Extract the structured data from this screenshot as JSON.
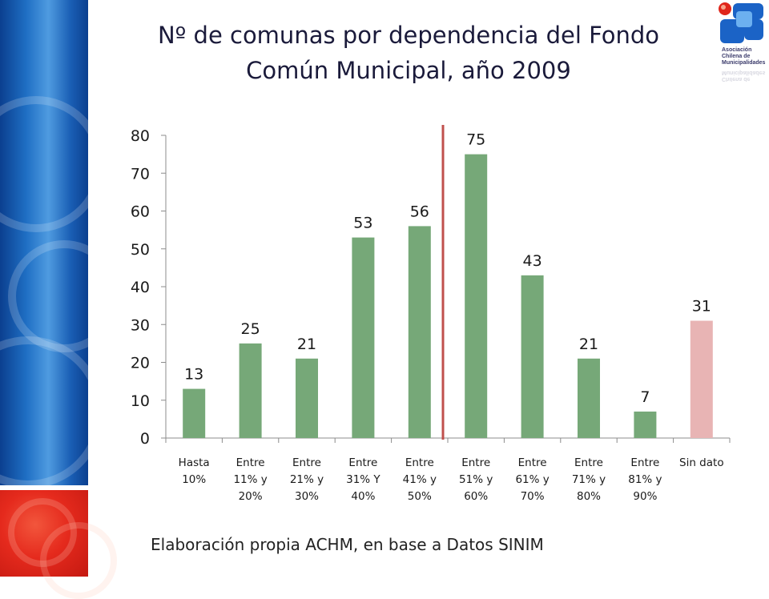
{
  "slide": {
    "title_line1": "Nº de comunas por dependencia del Fondo",
    "title_line2": "Común Municipal, año 2009",
    "source_note": "Elaboración propia ACHM, en base a Datos SINIM",
    "logo_text": [
      "Asociación",
      "Chilena de",
      "Municipalidades"
    ]
  },
  "colors": {
    "bar_default": "#76a878",
    "bar_highlight": "#e8b4b4",
    "divider_line": "#c0504d",
    "axis": "#8c8c8c",
    "text": "#1a1a1a"
  },
  "icons": {
    "logo": "achm-logo-icon"
  },
  "chart_data": {
    "type": "bar",
    "title": "Nº de comunas por dependencia del Fondo Común Municipal, año 2009",
    "categories": [
      [
        "Hasta",
        "10%"
      ],
      [
        "Entre",
        "11% y",
        "20%"
      ],
      [
        "Entre",
        "21% y",
        "30%"
      ],
      [
        "Entre",
        "31% Y",
        "40%"
      ],
      [
        "Entre",
        "41% y",
        "50%"
      ],
      [
        "Entre",
        "51% y",
        "60%"
      ],
      [
        "Entre",
        "61% y",
        "70%"
      ],
      [
        "Entre",
        "71% y",
        "80%"
      ],
      [
        "Entre",
        "81% y",
        "90%"
      ],
      [
        "Sin dato"
      ]
    ],
    "values": [
      13,
      25,
      21,
      53,
      56,
      75,
      43,
      21,
      7,
      31
    ],
    "highlight_index": 9,
    "divider_after_index": 4,
    "y_ticks": [
      0,
      10,
      20,
      30,
      40,
      50,
      60,
      70,
      80
    ],
    "ylim": [
      0,
      80
    ],
    "xlabel": "",
    "ylabel": "",
    "grid": false,
    "legend": "none",
    "data_labels": true
  }
}
